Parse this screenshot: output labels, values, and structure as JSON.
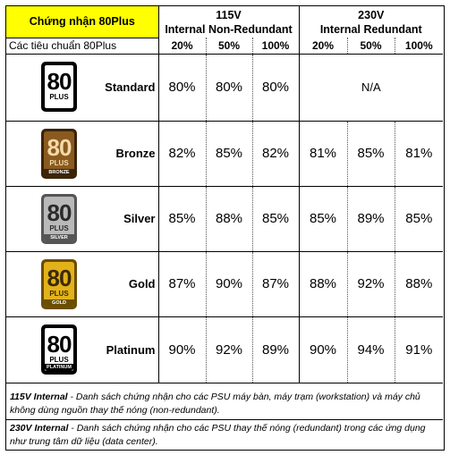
{
  "header": {
    "title": "Chứng nhận 80Plus",
    "subtitle": "Các tiêu chuẩn 80Plus",
    "group_115": {
      "line1": "115V",
      "line2": "Internal Non-Redundant"
    },
    "group_230": {
      "line1": "230V",
      "line2": "Internal Redundant"
    },
    "loads": [
      "20%",
      "50%",
      "100%",
      "20%",
      "50%",
      "100%"
    ]
  },
  "rows": [
    {
      "tier": "Standard",
      "logo_band": "",
      "v115": [
        "80%",
        "80%",
        "80%"
      ],
      "v230": [],
      "na": "N/A"
    },
    {
      "tier": "Bronze",
      "logo_band": "BRONZE",
      "v115": [
        "82%",
        "85%",
        "82%"
      ],
      "v230": [
        "81%",
        "85%",
        "81%"
      ]
    },
    {
      "tier": "Silver",
      "logo_band": "SILVER",
      "v115": [
        "85%",
        "88%",
        "85%"
      ],
      "v230": [
        "85%",
        "89%",
        "85%"
      ]
    },
    {
      "tier": "Gold",
      "logo_band": "GOLD",
      "v115": [
        "87%",
        "90%",
        "87%"
      ],
      "v230": [
        "88%",
        "92%",
        "88%"
      ]
    },
    {
      "tier": "Platinum",
      "logo_band": "PLATINUM",
      "v115": [
        "90%",
        "92%",
        "89%"
      ],
      "v230": [
        "90%",
        "94%",
        "91%"
      ]
    }
  ],
  "logos": {
    "number": "80",
    "plus": "PLUS",
    "colors": {
      "standard": {
        "bg": "#ffffff",
        "ring": "#000000",
        "text": "#000000"
      },
      "bronze": {
        "bg": "#8a5a1f",
        "ring": "#3b2408",
        "text": "#f3d9a8"
      },
      "silver": {
        "bg": "#b9b9b9",
        "ring": "#555555",
        "text": "#2b2b2b"
      },
      "gold": {
        "bg": "#e3b21a",
        "ring": "#6b4e00",
        "text": "#3b2a00"
      },
      "platinum": {
        "bg": "#ffffff",
        "ring": "#000000",
        "text": "#000000"
      }
    }
  },
  "notes": [
    {
      "label": "115V Internal",
      "text": " - Danh sách chứng nhận cho các PSU máy bàn, máy trạm (workstation) và máy chủ không dùng nguồn thay thế nóng (non-redundant)."
    },
    {
      "label": "230V Internal",
      "text": " - Danh sách chứng nhận cho các PSU thay thế nóng (redundant) trong các ứng dụng như trung tâm dữ liệu (data center)."
    }
  ]
}
